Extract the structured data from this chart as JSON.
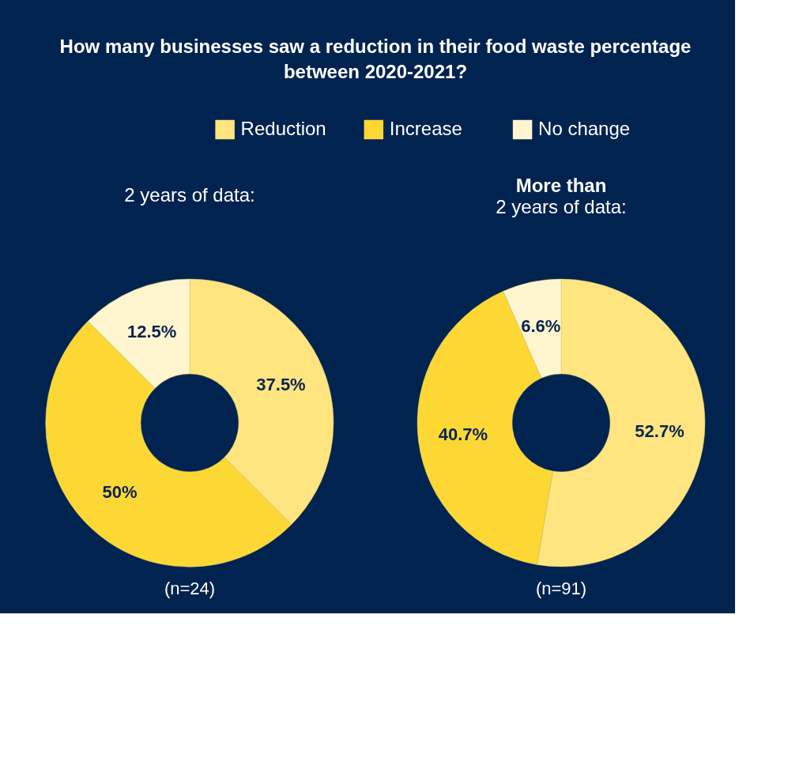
{
  "chart_data": [
    {
      "type": "donut",
      "title": "How many businesses saw a reduction in their food waste percentage between 2020-2021?",
      "subtitle": "2 years of data:",
      "categories": [
        "Reduction",
        "Increase",
        "No change"
      ],
      "values": [
        37.5,
        50,
        12.5
      ],
      "colors": [
        "#ffe57f",
        "#fdd835",
        "#fff6cf"
      ],
      "value_labels": [
        "37.5%",
        "50%",
        "12.5%"
      ],
      "legend": "top",
      "annotations": [
        "(n=24)"
      ]
    },
    {
      "type": "donut",
      "title": "More than",
      "subtitle": "2 years of data:",
      "categories": [
        null,
        null,
        null
      ],
      "values": [
        52.7,
        40.7,
        6.6
      ],
      "colors": [
        "#ffe57f",
        "#fdd835",
        "#fff6cf"
      ],
      "value_labels": [
        "52.7%",
        "40.7%",
        "6.6%"
      ],
      "annotations": [
        "(n=91)"
      ]
    }
  ]
}
